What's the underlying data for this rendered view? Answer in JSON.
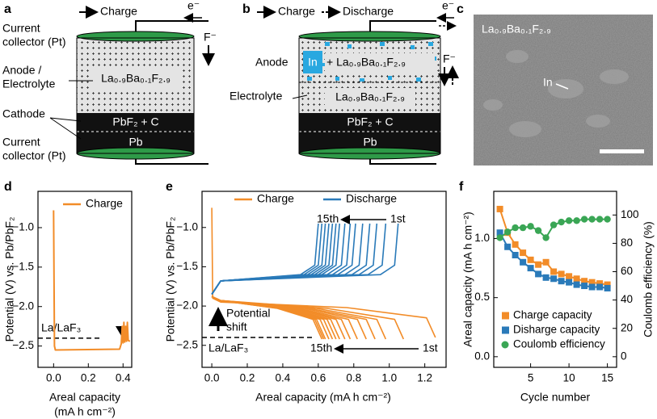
{
  "panel_a": {
    "letter": "a",
    "arrow_label": "Charge",
    "electron": "e⁻",
    "ion": "F⁻",
    "labels": {
      "top_collector": [
        "Current",
        "collector (Pt)"
      ],
      "anode_electrolyte": [
        "Anode /",
        "Electrolyte"
      ],
      "cathode": "Cathode",
      "bottom_collector": [
        "Current",
        "collector (Pt)"
      ]
    },
    "layers": {
      "electrolyte": "La₀.₉Ba₀.₁F₂.₉",
      "cathode": "PbF₂ + C",
      "metal": "Pb"
    }
  },
  "panel_b": {
    "letter": "b",
    "charge": "Charge",
    "discharge": "Discharge",
    "electron": "e⁻",
    "ion": "F⁻",
    "labels": {
      "anode": "Anode",
      "electrolyte": "Electrolyte"
    },
    "layers": {
      "anode_metal": "In",
      "anode_mix": "+ La₀.₉Ba₀.₁F₂.₉",
      "electrolyte": "La₀.₉Ba₀.₁F₂.₉",
      "cathode": "PbF₂ + C",
      "metal": "Pb"
    }
  },
  "panel_c": {
    "letter": "c",
    "caption": "La₀.₉Ba₀.₁F₂.₉",
    "marker": "In"
  },
  "chart_data": [
    {
      "type": "line",
      "panel": "d",
      "x_label": [
        "Areal capacity",
        "(mA h cm⁻²)"
      ],
      "y_label": "Potential (V) vs. Pb/PbF₂",
      "xlim": [
        -0.09,
        0.45
      ],
      "ylim": [
        -2.77,
        -0.54
      ],
      "xticks": [
        {
          "value": 0,
          "label": "0.0"
        },
        0.2,
        0.4
      ],
      "yticks": [
        {
          "value": -1,
          "label": "−1.0"
        },
        {
          "value": -1.5,
          "label": "−1.5"
        },
        {
          "value": -2,
          "label": "−2.0"
        },
        {
          "value": -2.5,
          "label": "−2.5"
        }
      ],
      "legend": "upper right",
      "reference": {
        "value": -2.4,
        "label": "La/LaF₃"
      },
      "series": [
        {
          "name": "Charge",
          "color": "#f28c28",
          "x": [
            0,
            0.005,
            0.01,
            0.38,
            0.39,
            0.395,
            0.4,
            0.405,
            0.41,
            0.415,
            0.42,
            0.425,
            0.43,
            0.44
          ],
          "values": [
            -0.78,
            -2.5,
            -2.55,
            -2.54,
            -2.47,
            -2.25,
            -2.46,
            -2.2,
            -2.45,
            -2.25,
            -2.44,
            -2.2,
            -2.43,
            -2.44
          ]
        }
      ]
    },
    {
      "type": "line",
      "panel": "e",
      "x_label": [
        "Areal capacity (mA h cm⁻²)"
      ],
      "y_label": "Potential (V) vs. Pb/PbF₂",
      "xlim": [
        -0.055,
        1.32
      ],
      "ylim": [
        -2.78,
        -0.54
      ],
      "xticks": [
        {
          "value": 0,
          "label": "0.0"
        },
        0.2,
        0.4,
        0.6,
        0.8,
        {
          "value": 1,
          "label": "1.0"
        },
        1.2
      ],
      "yticks": [
        {
          "value": -1,
          "label": "−1.0"
        },
        {
          "value": -1.5,
          "label": "−1.5"
        },
        {
          "value": -2,
          "label": "−2.0"
        },
        {
          "value": -2.5,
          "label": "−2.5"
        }
      ],
      "legend": "top",
      "reference": {
        "value": -2.4,
        "label": "La/LaF₃"
      },
      "annotations": {
        "top_from": "15th",
        "top_to": "1st",
        "bottom_from": "15th",
        "bottom_to": "1st",
        "shift": [
          "Potential",
          "shift"
        ]
      },
      "series": [
        {
          "name": "Charge",
          "color": "#f28c28",
          "curves": [
            {
              "x": [
                0,
                0.005,
                0.05,
                0.76,
                1.21,
                1.26
              ],
              "values": [
                -0.75,
                -1.9,
                -1.95,
                -2.02,
                -2.15,
                -2.4
              ]
            },
            {
              "x": [
                0,
                0.05,
                0.65,
                1.03,
                1.08
              ],
              "values": [
                -1.88,
                -1.93,
                -2.03,
                -2.17,
                -2.42
              ]
            },
            {
              "x": [
                0,
                0.05,
                0.59,
                0.93,
                0.98
              ],
              "values": [
                -1.88,
                -1.93,
                -2.03,
                -2.17,
                -2.42
              ]
            },
            {
              "x": [
                0,
                0.05,
                0.55,
                0.87,
                0.92
              ],
              "values": [
                -1.88,
                -1.93,
                -2.03,
                -2.17,
                -2.42
              ]
            },
            {
              "x": [
                0,
                0.05,
                0.52,
                0.82,
                0.87
              ],
              "values": [
                -1.88,
                -1.93,
                -2.03,
                -2.17,
                -2.42
              ]
            },
            {
              "x": [
                0,
                0.05,
                0.49,
                0.77,
                0.82
              ],
              "values": [
                -1.88,
                -1.93,
                -2.03,
                -2.17,
                -2.42
              ]
            },
            {
              "x": [
                0,
                0.05,
                0.47,
                0.73,
                0.78
              ],
              "values": [
                -1.88,
                -1.93,
                -2.03,
                -2.17,
                -2.42
              ]
            },
            {
              "x": [
                0,
                0.05,
                0.45,
                0.7,
                0.75
              ],
              "values": [
                -1.88,
                -1.93,
                -2.03,
                -2.17,
                -2.42
              ]
            },
            {
              "x": [
                0,
                0.05,
                0.43,
                0.67,
                0.72
              ],
              "values": [
                -1.88,
                -1.93,
                -2.03,
                -2.17,
                -2.42
              ]
            },
            {
              "x": [
                0,
                0.05,
                0.42,
                0.65,
                0.7
              ],
              "values": [
                -1.88,
                -1.93,
                -2.03,
                -2.17,
                -2.42
              ]
            },
            {
              "x": [
                0,
                0.05,
                0.41,
                0.63,
                0.68
              ],
              "values": [
                -1.88,
                -1.93,
                -2.03,
                -2.17,
                -2.42
              ]
            },
            {
              "x": [
                0,
                0.05,
                0.4,
                0.61,
                0.66
              ],
              "values": [
                -1.88,
                -1.93,
                -2.03,
                -2.17,
                -2.42
              ]
            },
            {
              "x": [
                0,
                0.05,
                0.38,
                0.59,
                0.64
              ],
              "values": [
                -1.88,
                -1.93,
                -2.03,
                -2.17,
                -2.42
              ]
            },
            {
              "x": [
                0,
                0.05,
                0.38,
                0.58,
                0.63
              ],
              "values": [
                -1.88,
                -1.93,
                -2.03,
                -2.17,
                -2.42
              ]
            },
            {
              "x": [
                0,
                0.05,
                0.37,
                0.57,
                0.62
              ],
              "values": [
                -1.88,
                -1.93,
                -2.03,
                -2.17,
                -2.42
              ]
            }
          ]
        },
        {
          "name": "Discharge",
          "color": "#2a7ab9",
          "curves": [
            {
              "x": [
                0,
                0.05,
                0.95,
                1.03,
                1.05
              ],
              "values": [
                -1.85,
                -1.68,
                -1.6,
                -1.48,
                -0.95
              ]
            },
            {
              "x": [
                0,
                0.05,
                0.88,
                0.96,
                0.98
              ],
              "values": [
                -1.85,
                -1.68,
                -1.6,
                -1.48,
                -0.95
              ]
            },
            {
              "x": [
                0,
                0.05,
                0.83,
                0.91,
                0.93
              ],
              "values": [
                -1.85,
                -1.68,
                -1.6,
                -1.48,
                -0.95
              ]
            },
            {
              "x": [
                0,
                0.05,
                0.79,
                0.87,
                0.89
              ],
              "values": [
                -1.85,
                -1.68,
                -1.6,
                -1.48,
                -0.95
              ]
            },
            {
              "x": [
                0,
                0.05,
                0.75,
                0.83,
                0.85
              ],
              "values": [
                -1.85,
                -1.68,
                -1.6,
                -1.48,
                -0.95
              ]
            },
            {
              "x": [
                0,
                0.05,
                0.71,
                0.79,
                0.81
              ],
              "values": [
                -1.85,
                -1.68,
                -1.6,
                -1.48,
                -0.95
              ]
            },
            {
              "x": [
                0,
                0.05,
                0.68,
                0.76,
                0.78
              ],
              "values": [
                -1.85,
                -1.68,
                -1.6,
                -1.48,
                -0.95
              ]
            },
            {
              "x": [
                0,
                0.05,
                0.65,
                0.73,
                0.75
              ],
              "values": [
                -1.85,
                -1.68,
                -1.6,
                -1.48,
                -0.95
              ]
            },
            {
              "x": [
                0,
                0.05,
                0.62,
                0.7,
                0.72
              ],
              "values": [
                -1.85,
                -1.68,
                -1.6,
                -1.48,
                -0.95
              ]
            },
            {
              "x": [
                0,
                0.05,
                0.6,
                0.68,
                0.7
              ],
              "values": [
                -1.85,
                -1.68,
                -1.6,
                -1.48,
                -0.95
              ]
            },
            {
              "x": [
                0,
                0.05,
                0.58,
                0.66,
                0.68
              ],
              "values": [
                -1.85,
                -1.68,
                -1.6,
                -1.48,
                -0.95
              ]
            },
            {
              "x": [
                0,
                0.05,
                0.56,
                0.64,
                0.66
              ],
              "values": [
                -1.85,
                -1.68,
                -1.6,
                -1.48,
                -0.95
              ]
            },
            {
              "x": [
                0,
                0.05,
                0.54,
                0.62,
                0.64
              ],
              "values": [
                -1.85,
                -1.68,
                -1.6,
                -1.48,
                -0.95
              ]
            },
            {
              "x": [
                0,
                0.05,
                0.52,
                0.6,
                0.62
              ],
              "values": [
                -1.85,
                -1.68,
                -1.6,
                -1.48,
                -0.95
              ]
            },
            {
              "x": [
                0,
                0.05,
                0.5,
                0.58,
                0.6
              ],
              "values": [
                -1.85,
                -1.68,
                -1.6,
                -1.48,
                -0.95
              ]
            }
          ]
        }
      ]
    },
    {
      "type": "line",
      "panel": "f",
      "x_label": [
        "Cycle number"
      ],
      "y_label": "Areal capacity (mA h cm⁻²)",
      "y2_label": "Coulomb efficiency (%)",
      "xlim": [
        0.2,
        16.2
      ],
      "ylim": [
        -0.09,
        1.4
      ],
      "y2lim": [
        -7.5,
        116.7
      ],
      "xticks": [
        5,
        10,
        15
      ],
      "yticks": [
        {
          "value": 0,
          "label": "0.0"
        },
        0.5,
        {
          "value": 1,
          "label": "1.0"
        }
      ],
      "y2ticks": [
        0,
        20,
        40,
        60,
        80,
        100
      ],
      "legend": "lower left",
      "x": [
        1,
        2,
        3,
        4,
        5,
        6,
        7,
        8,
        9,
        10,
        11,
        12,
        13,
        14,
        15
      ],
      "series": [
        {
          "name": "Charge capacity",
          "color": "#f28c28",
          "marker": "square",
          "values": [
            1.25,
            1.05,
            0.95,
            0.88,
            0.82,
            0.78,
            0.8,
            0.72,
            0.7,
            0.68,
            0.66,
            0.64,
            0.63,
            0.62,
            0.61
          ]
        },
        {
          "name": "Disharge capacity",
          "color": "#2a7ab9",
          "marker": "square",
          "values": [
            1.05,
            0.93,
            0.86,
            0.8,
            0.75,
            0.7,
            0.67,
            0.66,
            0.64,
            0.63,
            0.61,
            0.6,
            0.59,
            0.59,
            0.58
          ]
        },
        {
          "name": "Coulomb efficiency",
          "color": "#3aa655",
          "marker": "circle",
          "axis": "y2",
          "values": [
            84,
            88,
            91,
            91,
            92,
            89,
            84,
            93,
            95,
            96,
            96,
            97,
            97,
            97,
            97
          ]
        }
      ]
    }
  ]
}
